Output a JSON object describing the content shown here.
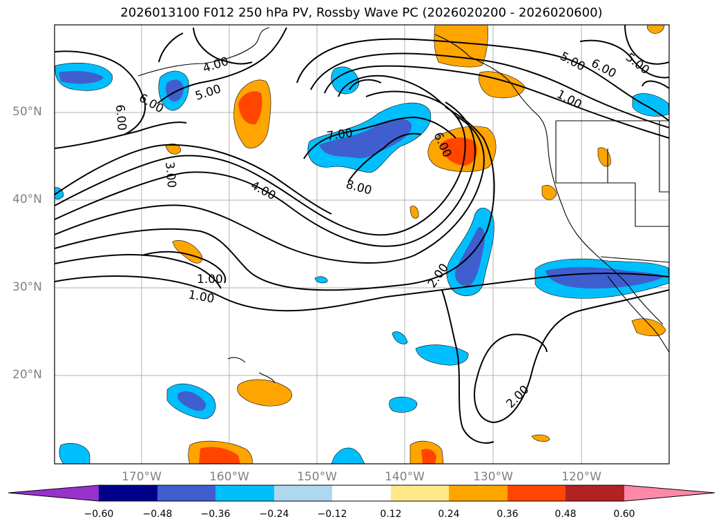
{
  "title": "2026013100 F012 250 hPa PV, Rossby Wave PC (2026020200 - 2026020600)",
  "map": {
    "lat_labels": [
      "50°N",
      "40°N",
      "30°N",
      "20°N"
    ],
    "lon_labels": [
      "170°W",
      "160°W",
      "150°W",
      "140°W",
      "130°W",
      "120°W"
    ]
  },
  "contour_labels": [
    "4.00",
    "5.00",
    "6.00",
    "6.00",
    "3.00",
    "4.00",
    "7.00",
    "8.00",
    "6.00",
    "5.00",
    "6.00",
    "5.00",
    "1.00",
    "1.00",
    "1.00",
    "2.00",
    "2.00"
  ],
  "colorbar": {
    "tick_labels": [
      "−0.60",
      "−0.48",
      "−0.36",
      "−0.24",
      "−0.12",
      "0.12",
      "0.24",
      "0.36",
      "0.48",
      "0.60"
    ],
    "colors": [
      "#9932cc",
      "#00008b",
      "#3f5fcf",
      "#00bfff",
      "#add8f0",
      "#ffffff",
      "#ffe88a",
      "#ffa500",
      "#ff4500",
      "#b22222",
      "#ff88aa"
    ]
  }
}
